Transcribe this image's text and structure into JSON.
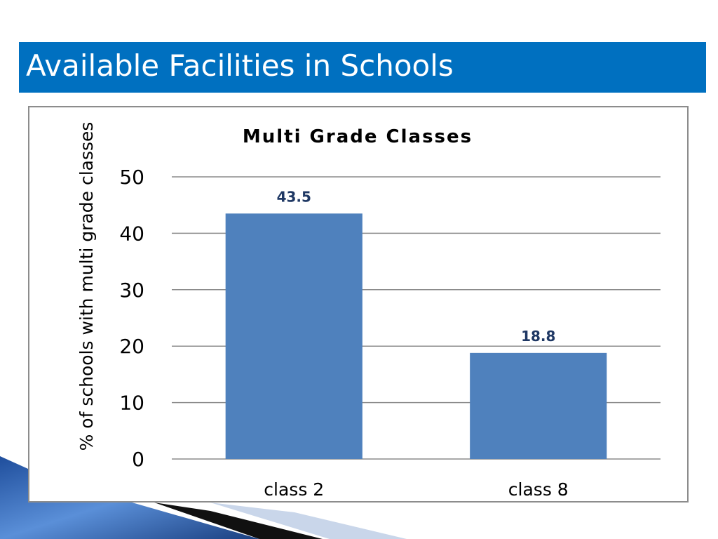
{
  "slide": {
    "title": "Available Facilities in Schools"
  },
  "chart_data": {
    "type": "bar",
    "title": "Multi Grade Classes",
    "xlabel": "",
    "ylabel": "% of schools with multi grade classes",
    "categories": [
      "class 2",
      "class 8"
    ],
    "values": [
      43.5,
      18.8
    ],
    "data_labels": [
      "43.5",
      "18.8"
    ],
    "ylim": [
      0,
      50
    ],
    "yticks": [
      0,
      10,
      20,
      30,
      40,
      50
    ],
    "grid": true,
    "legend": "none",
    "colors": {
      "bar": "#4f81bd",
      "data_label": "#1f3864",
      "gridline": "#8c8c8c"
    }
  },
  "theme": {
    "title_bar": "#0070c0",
    "title_text": "#ffffff"
  }
}
